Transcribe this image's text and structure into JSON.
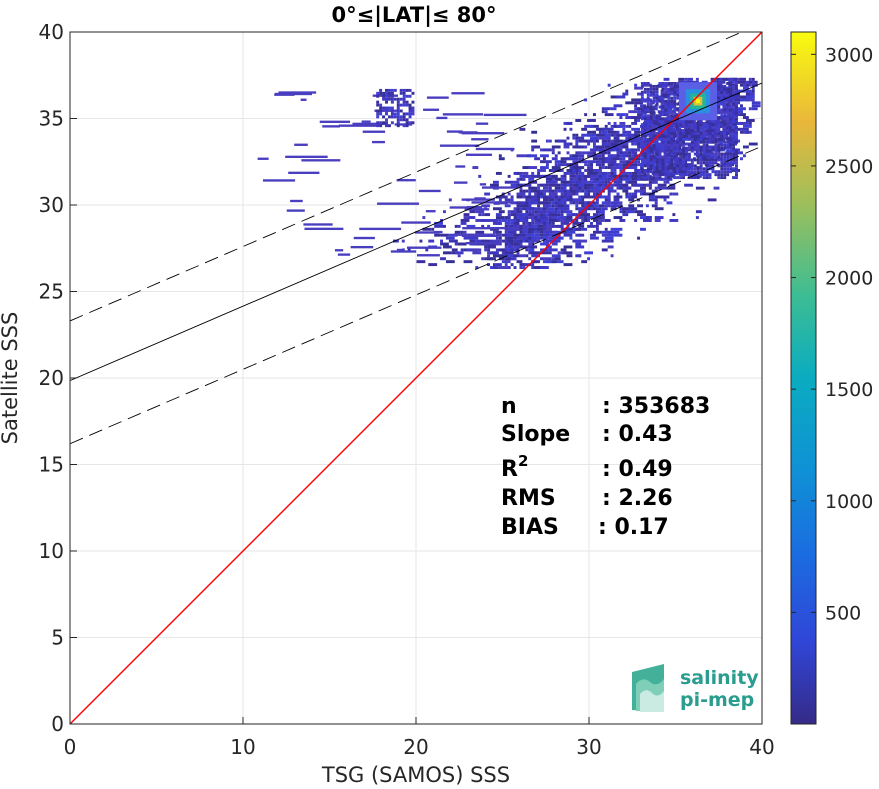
{
  "chart_data": {
    "type": "heatmap",
    "title": "0°≤|LAT|≤ 80°",
    "xlabel": "TSG (SAMOS) SSS",
    "ylabel": "Satellite SSS",
    "xlim": [
      0,
      40
    ],
    "ylim": [
      0,
      40
    ],
    "x_ticks": [
      "0",
      "10",
      "20",
      "30",
      "40"
    ],
    "y_ticks": [
      "0",
      "5",
      "10",
      "15",
      "20",
      "25",
      "30",
      "35",
      "40"
    ],
    "grid": true,
    "colorbar": {
      "range": [
        0,
        3100
      ],
      "ticks": [
        "500",
        "1000",
        "1500",
        "2000",
        "2500",
        "3000"
      ],
      "colormap": "parula"
    },
    "density_peak": {
      "x": 36.3,
      "y": 36.0,
      "count": 3100
    },
    "lines": [
      {
        "name": "1:1",
        "color": "#ff0000",
        "style": "solid",
        "slope": 1.0,
        "intercept": 0.0
      },
      {
        "name": "fit",
        "color": "#000000",
        "style": "solid",
        "slope": 0.43,
        "intercept": 19.85
      },
      {
        "name": "fit+2RMS",
        "color": "#000000",
        "style": "dashed",
        "slope": 0.43,
        "intercept": 23.3
      },
      {
        "name": "fit-2RMS",
        "color": "#000000",
        "style": "dashed",
        "slope": 0.43,
        "intercept": 16.2
      }
    ],
    "stats": [
      {
        "label": "n",
        "value": ": 353683"
      },
      {
        "label": "Slope",
        "value": ": 0.43"
      },
      {
        "label": "R",
        "superscript": "2",
        "value": ": 0.49"
      },
      {
        "label": "RMS",
        "value": ": 2.26"
      },
      {
        "label": "BIAS",
        "value": ": 0.17"
      }
    ]
  },
  "logo": {
    "line1": "salinity",
    "line2": "pi-mep"
  }
}
